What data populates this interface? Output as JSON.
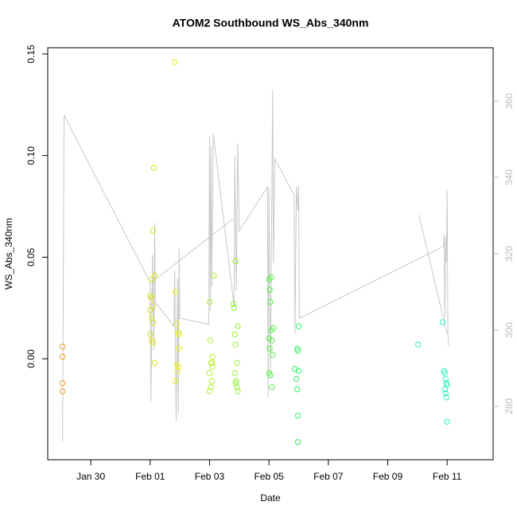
{
  "chart_data": {
    "type": "scatter",
    "title": "ATOM2 Southbound WS_Abs_340nm",
    "xlabel": "Date",
    "ylabel": "WS_Abs_340nm",
    "xlim": [
      28.55,
      43.55
    ],
    "xticks": [
      {
        "value": 30,
        "label": "Jan 30"
      },
      {
        "value": 32,
        "label": "Feb 01"
      },
      {
        "value": 34,
        "label": "Feb 03"
      },
      {
        "value": 36,
        "label": "Feb 05"
      },
      {
        "value": 38,
        "label": "Feb 07"
      },
      {
        "value": 40,
        "label": "Feb 09"
      },
      {
        "value": 42,
        "label": "Feb 11"
      }
    ],
    "ylim": [
      -0.0497,
      0.1531
    ],
    "yticks": [
      {
        "value": 0,
        "label": "0.00"
      },
      {
        "value": 0.05,
        "label": "0.05"
      },
      {
        "value": 0.1,
        "label": "0.10"
      },
      {
        "value": 0.15,
        "label": "0.15"
      }
    ],
    "y2lim": [
      266,
      374
    ],
    "y2ticks": [
      280,
      300,
      320,
      340,
      360
    ],
    "y2color": "#bbbbbb",
    "series": [
      {
        "type": "scatter",
        "color": "#f0a030",
        "x": [
          29.05,
          29.05,
          29.05,
          29.05
        ],
        "values": [
          0.006,
          0.001,
          -0.012,
          -0.016
        ]
      },
      {
        "type": "scatter",
        "color": "#d8e020",
        "x": [
          32.15,
          32.05,
          32.0,
          32.05,
          32.1,
          32.0,
          32.05,
          32.1,
          32.0,
          32.05,
          32.1,
          32.15,
          32.125,
          32.1
        ],
        "values": [
          0.041,
          0.039,
          0.031,
          0.03,
          0.026,
          0.024,
          0.02,
          0.018,
          0.012,
          0.009,
          0.008,
          -0.002,
          0.094,
          0.063
        ]
      },
      {
        "type": "scatter",
        "color": "#e8f020",
        "x": [
          32.825,
          32.85,
          32.9,
          32.95,
          32.975,
          32.9,
          32.95,
          32.85,
          32.975,
          32.925
        ],
        "values": [
          0.146,
          0.033,
          0.017,
          0.013,
          0.012,
          -0.003,
          -0.004,
          -0.011,
          0.005,
          -0.006
        ]
      },
      {
        "type": "scatter",
        "color": "#b0f030",
        "x": [
          34.15,
          34.0,
          34.025,
          34.05,
          34.1,
          34.0,
          34.075,
          34.05,
          34.0,
          34.1,
          34.075
        ],
        "values": [
          0.041,
          0.028,
          0.009,
          -0.002,
          -0.004,
          -0.007,
          -0.011,
          -0.014,
          -0.016,
          0.001,
          -0.002
        ]
      },
      {
        "type": "scatter",
        "color": "#90f030",
        "x": [
          34.875,
          34.8,
          34.825,
          34.95,
          34.85,
          34.875,
          34.925,
          34.85,
          34.9,
          34.875,
          34.925,
          34.95
        ],
        "values": [
          0.048,
          0.027,
          0.025,
          0.016,
          0.012,
          0.007,
          -0.002,
          -0.007,
          -0.011,
          -0.012,
          -0.014,
          -0.016
        ]
      },
      {
        "type": "scatter",
        "color": "#50f040",
        "x": [
          36.0,
          36.075,
          36.025,
          36.05,
          36.15,
          36.075,
          36.0,
          36.1,
          36.025,
          36.125,
          36.0,
          36.05,
          36.1
        ],
        "values": [
          0.039,
          0.04,
          0.034,
          0.028,
          0.015,
          0.014,
          0.01,
          0.009,
          0.005,
          0.002,
          -0.007,
          -0.008,
          -0.014
        ]
      },
      {
        "type": "scatter",
        "color": "#30f060",
        "x": [
          37.0,
          36.95,
          36.975,
          36.875,
          37.0,
          36.925,
          36.95,
          36.975,
          36.975
        ],
        "values": [
          0.016,
          0.005,
          0.004,
          -0.005,
          -0.006,
          -0.01,
          -0.015,
          -0.028,
          -0.041
        ]
      },
      {
        "type": "scatter",
        "color": "#30f0a0",
        "x": [
          41.025
        ],
        "values": [
          0.007
        ]
      },
      {
        "type": "scatter",
        "color": "#30f0c0",
        "x": [
          41.85,
          41.9,
          41.925,
          41.95,
          41.975,
          42.0,
          41.925,
          41.95,
          41.975,
          42.0
        ],
        "values": [
          0.018,
          -0.006,
          -0.007,
          -0.01,
          -0.012,
          -0.013,
          -0.015,
          -0.017,
          -0.019,
          -0.031
        ]
      },
      {
        "type": "line",
        "axis": "y2",
        "color": "#c8c8c8",
        "x": [
          29.05,
          29.1,
          32.0,
          32.025,
          32.075,
          32.125,
          32.15,
          32.175,
          32.8,
          32.825,
          32.875,
          32.925,
          32.95,
          32.975,
          33.0,
          33.975,
          34.0,
          34.025,
          34.05,
          34.075,
          34.125,
          34.825,
          34.85,
          34.9,
          34.95,
          35.0,
          35.95,
          35.975,
          36.0,
          36.05,
          36.125,
          36.15,
          36.2,
          36.85,
          36.875,
          36.925,
          36.975,
          37.0,
          37.025,
          41.875,
          41.9,
          41.925,
          41.95,
          41.975,
          42.0,
          42.025,
          42.05,
          null,
          32.05,
          34.8,
          null,
          41.05,
          42.0
        ],
        "values": [
          270.8,
          356.3,
          312.5,
          281.3,
          319.8,
          294.8,
          328.1,
          307.3,
          301.0,
          315.6,
          276.0,
          313.5,
          278.1,
          321.3,
          303.1,
          301.5,
          351.0,
          305.2,
          348.3,
          311.5,
          351.5,
          306.3,
          345.8,
          310.4,
          349.0,
          326.0,
          337.5,
          282.3,
          337.5,
          288.5,
          362.9,
          317.7,
          344.8,
          335.4,
          299.0,
          337.5,
          331.3,
          337.9,
          303.1,
          321.9,
          325.0,
          303.1,
          324.4,
          317.7,
          336.5,
          299.0,
          295.8,
          null,
          312.5,
          329.2,
          null,
          330.2,
          299.0
        ]
      }
    ]
  }
}
